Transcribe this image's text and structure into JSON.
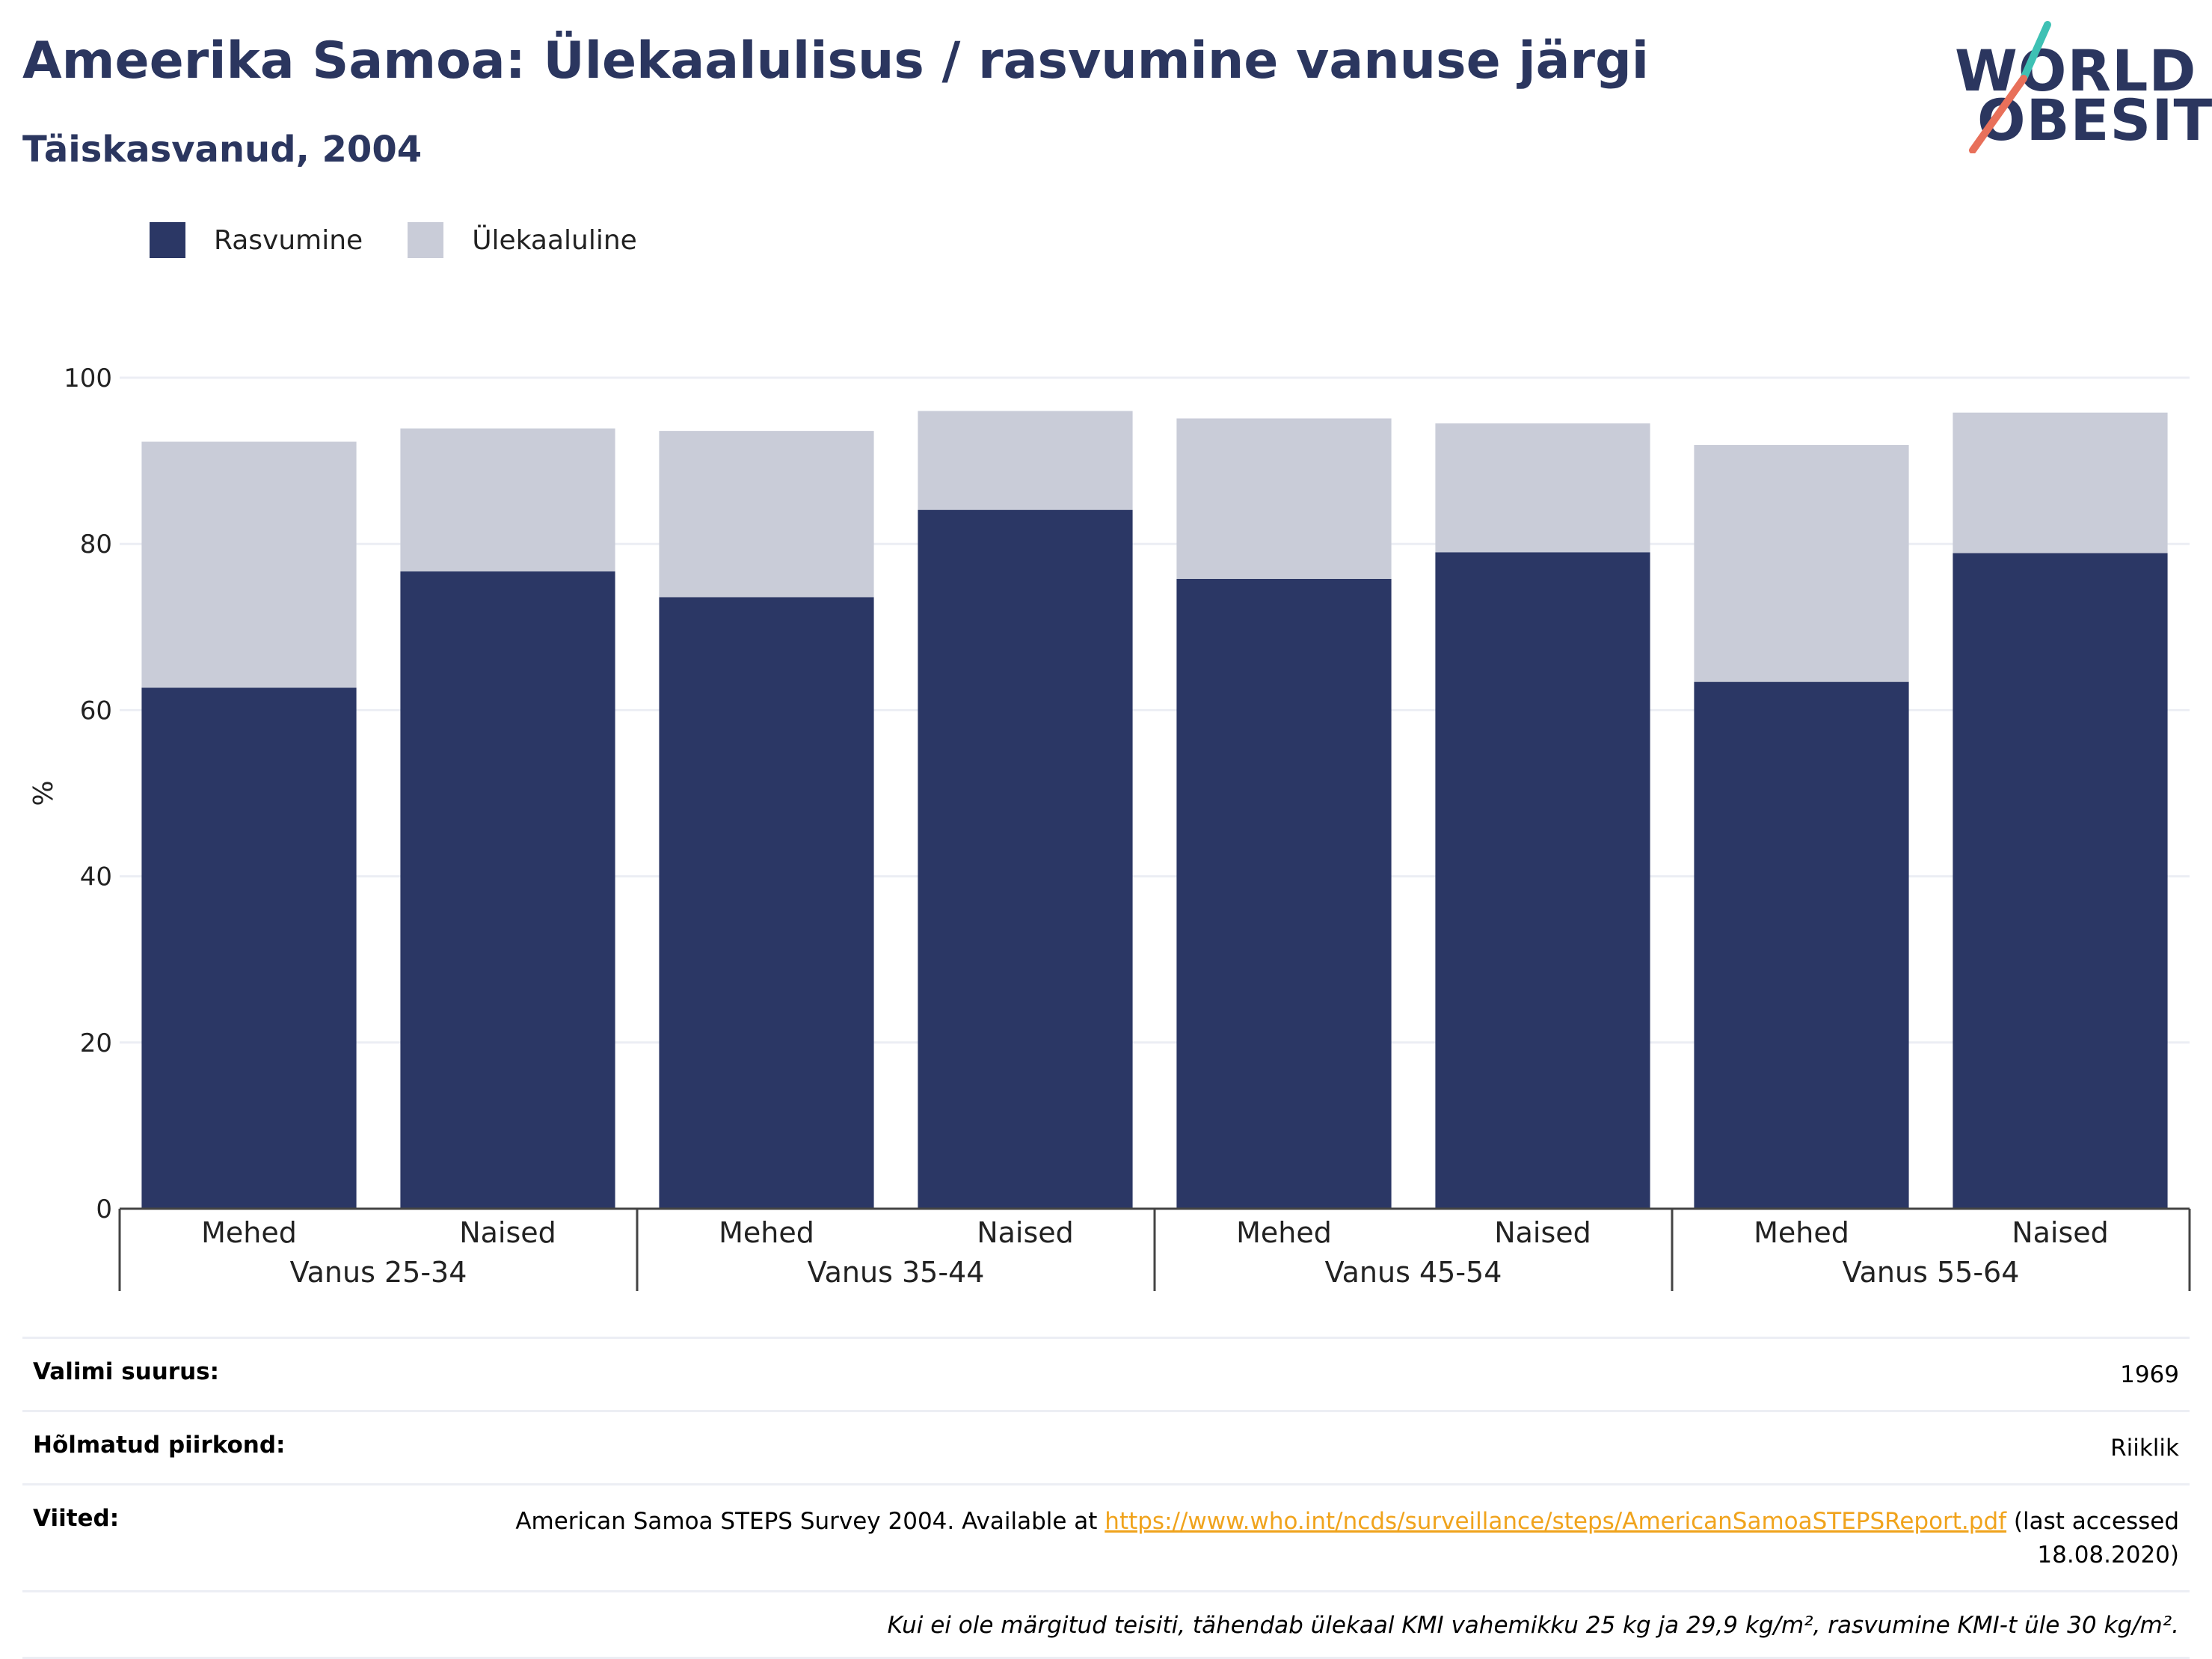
{
  "header": {
    "title": "Ameerika Samoa: Ülekaalulisus / rasvumine vanuse järgi",
    "subtitle": "Täiskasvanud, 2004"
  },
  "logo": {
    "line1": "WORLD",
    "line2": "OBESITY",
    "stroke_colors": [
      "#3ec1b4",
      "#e8705a"
    ]
  },
  "legend": {
    "items": [
      {
        "label": "Rasvumine",
        "color": "#2b3765"
      },
      {
        "label": "Ülekaaluline",
        "color": "#c9ccd8"
      }
    ]
  },
  "chart_data": {
    "type": "bar",
    "stacked": true,
    "ylabel": "%",
    "xlabel": "",
    "ylim": [
      0,
      100
    ],
    "yticks": [
      0,
      20,
      40,
      60,
      80,
      100
    ],
    "grid": true,
    "legend_position": "top-left",
    "group_labels": [
      "Vanus 25-34",
      "Vanus 35-44",
      "Vanus 45-54",
      "Vanus 55-64"
    ],
    "categories": [
      "Mehed",
      "Naised",
      "Mehed",
      "Naised",
      "Mehed",
      "Naised",
      "Mehed",
      "Naised"
    ],
    "series": [
      {
        "name": "Rasvumine",
        "color": "#2b3765",
        "values": [
          62.7,
          76.7,
          73.6,
          84.1,
          75.8,
          79.0,
          63.4,
          78.9
        ]
      },
      {
        "name": "Ülekaaluline",
        "color": "#c9ccd8",
        "values": [
          29.6,
          17.2,
          20.0,
          11.9,
          19.3,
          15.5,
          28.5,
          16.9
        ]
      }
    ]
  },
  "info": {
    "sample_size_label": "Valimi suurus:",
    "sample_size_value": "1969",
    "coverage_label": "Hõlmatud piirkond:",
    "coverage_value": "Riiklik",
    "references_label": "Viited:",
    "references_text": "American Samoa STEPS Survey 2004. Available at",
    "references_link": "https://www.who.int/ncds/surveillance/steps/AmericanSamoaSTEPSReport.pdf",
    "references_suffix": "(last accessed 18.08.2020)",
    "footnote": "Kui ei ole märgitud teisiti, tähendab ülekaal KMI vahemikku 25 kg ja 29,9 kg/m², rasvumine KMI-t üle 30 kg/m²."
  }
}
